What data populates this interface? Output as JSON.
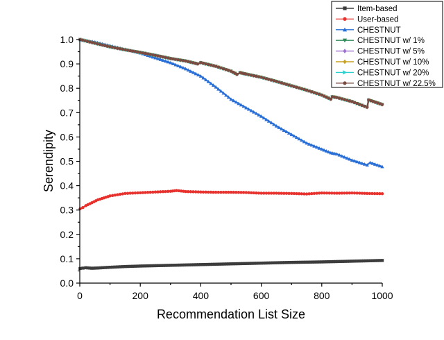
{
  "chart_data": {
    "type": "line",
    "title": "",
    "xlabel": "Recommendation List Size",
    "ylabel": "Serendipity",
    "xlim": [
      0,
      1000
    ],
    "ylim": [
      0.0,
      1.0
    ],
    "x_ticks": [
      "0",
      "200",
      "400",
      "600",
      "800",
      "1000"
    ],
    "y_ticks": [
      "0.0",
      "0.1",
      "0.2",
      "0.3",
      "0.4",
      "0.5",
      "0.6",
      "0.7",
      "0.8",
      "0.9",
      "1.0"
    ],
    "grid": false,
    "legend_position": "top-right",
    "series": [
      {
        "name": "Item-based",
        "color": "#3c3c3c",
        "marker": "square",
        "x": [
          1,
          20,
          40,
          60,
          100,
          150,
          200,
          300,
          400,
          500,
          600,
          700,
          800,
          900,
          1000
        ],
        "y": [
          0.06,
          0.063,
          0.061,
          0.062,
          0.065,
          0.068,
          0.07,
          0.073,
          0.076,
          0.079,
          0.082,
          0.085,
          0.087,
          0.09,
          0.093
        ]
      },
      {
        "name": "User-based",
        "color": "#e8302c",
        "marker": "circle",
        "x": [
          1,
          10,
          20,
          40,
          60,
          80,
          100,
          150,
          200,
          250,
          300,
          320,
          350,
          400,
          450,
          500,
          550,
          600,
          650,
          700,
          750,
          800,
          850,
          900,
          950,
          1000
        ],
        "y": [
          0.305,
          0.31,
          0.318,
          0.33,
          0.342,
          0.35,
          0.358,
          0.368,
          0.371,
          0.374,
          0.377,
          0.38,
          0.376,
          0.374,
          0.373,
          0.373,
          0.372,
          0.369,
          0.369,
          0.368,
          0.366,
          0.37,
          0.369,
          0.37,
          0.368,
          0.367
        ]
      },
      {
        "name": "CHESTNUT",
        "color": "#2a6fd6",
        "marker": "triangle-up",
        "x": [
          1,
          50,
          100,
          150,
          200,
          250,
          300,
          350,
          400,
          450,
          500,
          550,
          600,
          650,
          700,
          750,
          800,
          830,
          850,
          900,
          950,
          960,
          1000
        ],
        "y": [
          1.0,
          0.99,
          0.975,
          0.96,
          0.945,
          0.925,
          0.905,
          0.88,
          0.85,
          0.805,
          0.755,
          0.72,
          0.685,
          0.645,
          0.61,
          0.575,
          0.55,
          0.535,
          0.53,
          0.505,
          0.485,
          0.495,
          0.478
        ]
      },
      {
        "name": "CHESTNUT w/ 1%",
        "color": "#2e8b57",
        "marker": "triangle-down",
        "x": [
          1,
          50,
          100,
          150,
          200,
          250,
          300,
          350,
          390,
          400,
          450,
          500,
          520,
          530,
          550,
          600,
          650,
          700,
          750,
          800,
          830,
          835,
          850,
          900,
          950,
          955,
          1000
        ],
        "y": [
          1.0,
          0.985,
          0.97,
          0.958,
          0.947,
          0.935,
          0.922,
          0.912,
          0.9,
          0.905,
          0.89,
          0.87,
          0.857,
          0.864,
          0.858,
          0.845,
          0.828,
          0.81,
          0.792,
          0.772,
          0.755,
          0.765,
          0.762,
          0.745,
          0.722,
          0.752,
          0.733
        ]
      },
      {
        "name": "CHESTNUT w/ 5%",
        "color": "#9b6fd0",
        "marker": "diamond",
        "x": [
          1,
          50,
          100,
          150,
          200,
          250,
          300,
          350,
          390,
          400,
          450,
          500,
          520,
          530,
          550,
          600,
          650,
          700,
          750,
          800,
          830,
          835,
          850,
          900,
          950,
          955,
          1000
        ],
        "y": [
          1.0,
          0.985,
          0.97,
          0.958,
          0.947,
          0.935,
          0.922,
          0.912,
          0.9,
          0.905,
          0.89,
          0.87,
          0.857,
          0.864,
          0.858,
          0.845,
          0.828,
          0.81,
          0.792,
          0.772,
          0.755,
          0.765,
          0.762,
          0.745,
          0.722,
          0.752,
          0.733
        ]
      },
      {
        "name": "CHESTNUT w/ 10%",
        "color": "#c8a020",
        "marker": "diamond",
        "x": [
          1,
          50,
          100,
          150,
          200,
          250,
          300,
          350,
          390,
          400,
          450,
          500,
          520,
          530,
          550,
          600,
          650,
          700,
          750,
          800,
          830,
          835,
          850,
          900,
          950,
          955,
          1000
        ],
        "y": [
          1.0,
          0.985,
          0.97,
          0.958,
          0.947,
          0.935,
          0.922,
          0.912,
          0.9,
          0.905,
          0.89,
          0.87,
          0.857,
          0.864,
          0.858,
          0.845,
          0.828,
          0.81,
          0.792,
          0.772,
          0.755,
          0.765,
          0.762,
          0.745,
          0.722,
          0.752,
          0.733
        ]
      },
      {
        "name": "CHESTNUT w/ 20%",
        "color": "#2ad0d0",
        "marker": "triangle-right",
        "x": [
          1,
          50,
          100,
          150,
          200,
          250,
          300,
          350,
          390,
          400,
          450,
          500,
          520,
          530,
          550,
          600,
          650,
          700,
          750,
          800,
          830,
          835,
          850,
          900,
          950,
          955,
          1000
        ],
        "y": [
          1.0,
          0.985,
          0.97,
          0.958,
          0.947,
          0.935,
          0.922,
          0.912,
          0.9,
          0.905,
          0.89,
          0.87,
          0.857,
          0.864,
          0.858,
          0.845,
          0.828,
          0.81,
          0.792,
          0.772,
          0.755,
          0.765,
          0.762,
          0.745,
          0.722,
          0.752,
          0.733
        ]
      },
      {
        "name": "CHESTNUT w/ 22.5%",
        "color": "#7a4a40",
        "marker": "circle",
        "x": [
          1,
          50,
          100,
          150,
          200,
          250,
          300,
          350,
          390,
          400,
          450,
          500,
          520,
          530,
          550,
          600,
          650,
          700,
          750,
          800,
          830,
          835,
          850,
          900,
          950,
          955,
          1000
        ],
        "y": [
          1.0,
          0.985,
          0.97,
          0.958,
          0.947,
          0.935,
          0.922,
          0.912,
          0.9,
          0.905,
          0.89,
          0.87,
          0.857,
          0.864,
          0.858,
          0.845,
          0.828,
          0.81,
          0.792,
          0.772,
          0.755,
          0.765,
          0.762,
          0.745,
          0.722,
          0.752,
          0.733
        ]
      }
    ]
  }
}
